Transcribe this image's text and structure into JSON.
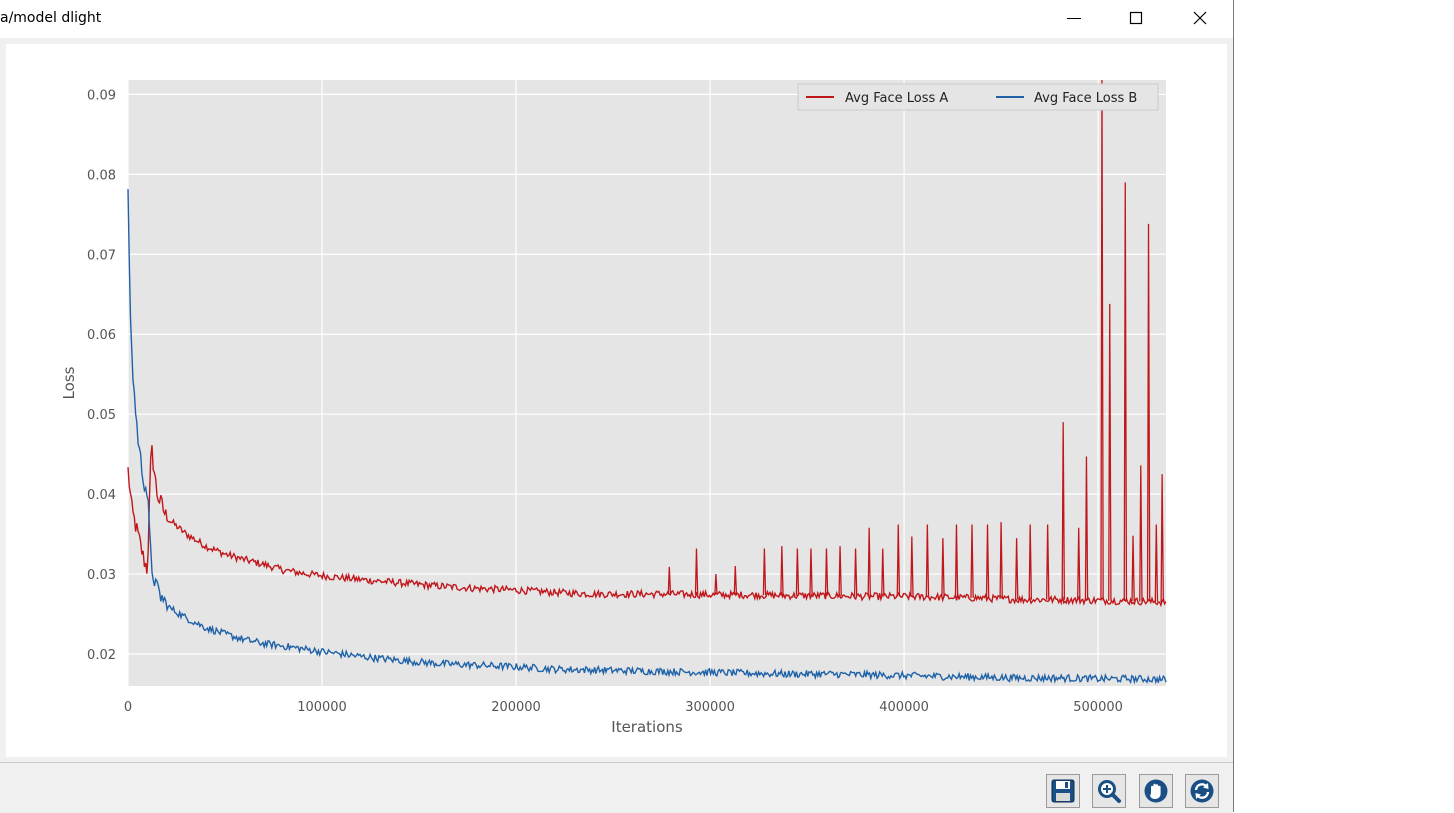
{
  "window": {
    "title": "a/model dlight",
    "controls": [
      "minimize-icon",
      "maximize-icon",
      "close-icon"
    ]
  },
  "toolbar": {
    "buttons": [
      {
        "name": "save",
        "icon": "floppy-disk-icon"
      },
      {
        "name": "zoom",
        "icon": "magnifier-icon"
      },
      {
        "name": "pan",
        "icon": "hand-icon"
      },
      {
        "name": "reset",
        "icon": "refresh-icon"
      }
    ]
  },
  "chart_data": {
    "type": "line",
    "title": "",
    "xlabel": "Iterations",
    "ylabel": "Loss",
    "xlim": [
      0,
      535000
    ],
    "ylim": [
      0.016,
      0.0918
    ],
    "xticks": [
      0,
      100000,
      200000,
      300000,
      400000,
      500000
    ],
    "yticks": [
      0.02,
      0.03,
      0.04,
      0.05,
      0.06,
      0.07,
      0.08,
      0.09
    ],
    "grid": true,
    "legend_position": "top-right",
    "background": "#e5e5e5",
    "series": [
      {
        "name": "Avg Face Loss A",
        "color": "#c0171b",
        "x": [
          0,
          2000,
          5000,
          8000,
          10000,
          12000,
          15000,
          20000,
          30000,
          40000,
          50000,
          60000,
          70000,
          80000,
          90000,
          100000,
          120000,
          140000,
          160000,
          180000,
          200000,
          220000,
          240000,
          260000,
          280000,
          300000,
          320000,
          340000,
          360000,
          380000,
          400000,
          420000,
          440000,
          460000,
          480000,
          500000,
          520000,
          535000
        ],
        "y": [
          0.043,
          0.038,
          0.035,
          0.032,
          0.0305,
          0.046,
          0.04,
          0.037,
          0.035,
          0.0335,
          0.0325,
          0.0318,
          0.0312,
          0.0305,
          0.0301,
          0.0298,
          0.0293,
          0.0289,
          0.0285,
          0.0282,
          0.028,
          0.0277,
          0.0275,
          0.0275,
          0.0275,
          0.0274,
          0.0274,
          0.0273,
          0.0273,
          0.0272,
          0.0272,
          0.0271,
          0.027,
          0.0268,
          0.0268,
          0.0267,
          0.0266,
          0.0265
        ]
      },
      {
        "name": "Avg Face Loss B",
        "color": "#1f62a8",
        "x": [
          0,
          1000,
          2000,
          4000,
          6000,
          8000,
          10000,
          12000,
          15000,
          20000,
          30000,
          40000,
          50000,
          60000,
          70000,
          80000,
          100000,
          120000,
          140000,
          160000,
          180000,
          200000,
          220000,
          240000,
          260000,
          280000,
          300000,
          320000,
          340000,
          360000,
          380000,
          400000,
          420000,
          440000,
          460000,
          480000,
          500000,
          520000,
          535000
        ],
        "y": [
          0.077,
          0.065,
          0.057,
          0.05,
          0.045,
          0.042,
          0.04,
          0.031,
          0.028,
          0.026,
          0.0245,
          0.0233,
          0.0225,
          0.0218,
          0.0213,
          0.021,
          0.0203,
          0.0197,
          0.0192,
          0.0188,
          0.0186,
          0.0184,
          0.0181,
          0.018,
          0.0179,
          0.0178,
          0.0177,
          0.0176,
          0.0175,
          0.0175,
          0.0174,
          0.0173,
          0.0172,
          0.0171,
          0.017,
          0.017,
          0.0169,
          0.0169,
          0.0168
        ]
      }
    ],
    "spikes_series_A": {
      "x": [
        279000,
        293000,
        303000,
        313000,
        328000,
        337000,
        345000,
        352000,
        360000,
        367000,
        375000,
        382000,
        389000,
        397000,
        404000,
        412000,
        420000,
        427000,
        435000,
        443000,
        450000,
        458000,
        465000,
        474000,
        482000,
        490000,
        494000,
        502000,
        506000,
        514000,
        518000,
        522000,
        526000,
        530000,
        533000
      ],
      "y": [
        0.0309,
        0.0332,
        0.03,
        0.031,
        0.0332,
        0.0335,
        0.0332,
        0.0332,
        0.0332,
        0.0335,
        0.0332,
        0.0358,
        0.0332,
        0.0362,
        0.0347,
        0.0362,
        0.0345,
        0.0362,
        0.0362,
        0.0362,
        0.0365,
        0.0345,
        0.0362,
        0.0362,
        0.049,
        0.0358,
        0.0447,
        0.0918,
        0.0638,
        0.079,
        0.0348,
        0.0436,
        0.0738,
        0.0362,
        0.0425
      ]
    }
  }
}
